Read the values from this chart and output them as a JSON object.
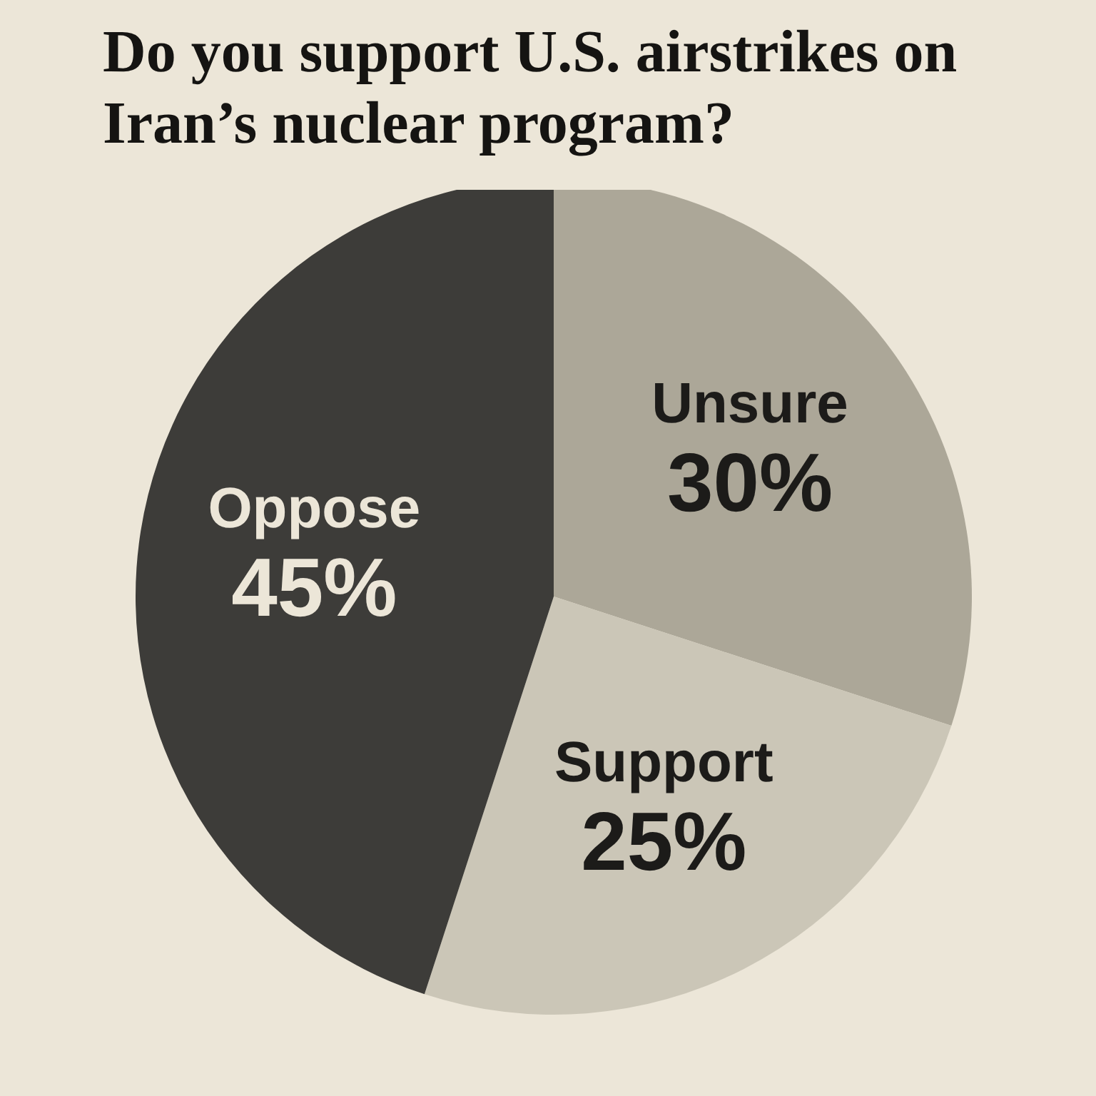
{
  "chart_data": {
    "type": "pie",
    "title": "Do you support U.S. airstrikes on Iran’s nuclear program?",
    "categories": [
      "Unsure",
      "Support",
      "Oppose"
    ],
    "values": [
      30,
      25,
      45
    ],
    "value_labels": [
      "30%",
      "25%",
      "45%"
    ],
    "colors": [
      "#aca798",
      "#cbc6b7",
      "#3d3c39"
    ]
  }
}
